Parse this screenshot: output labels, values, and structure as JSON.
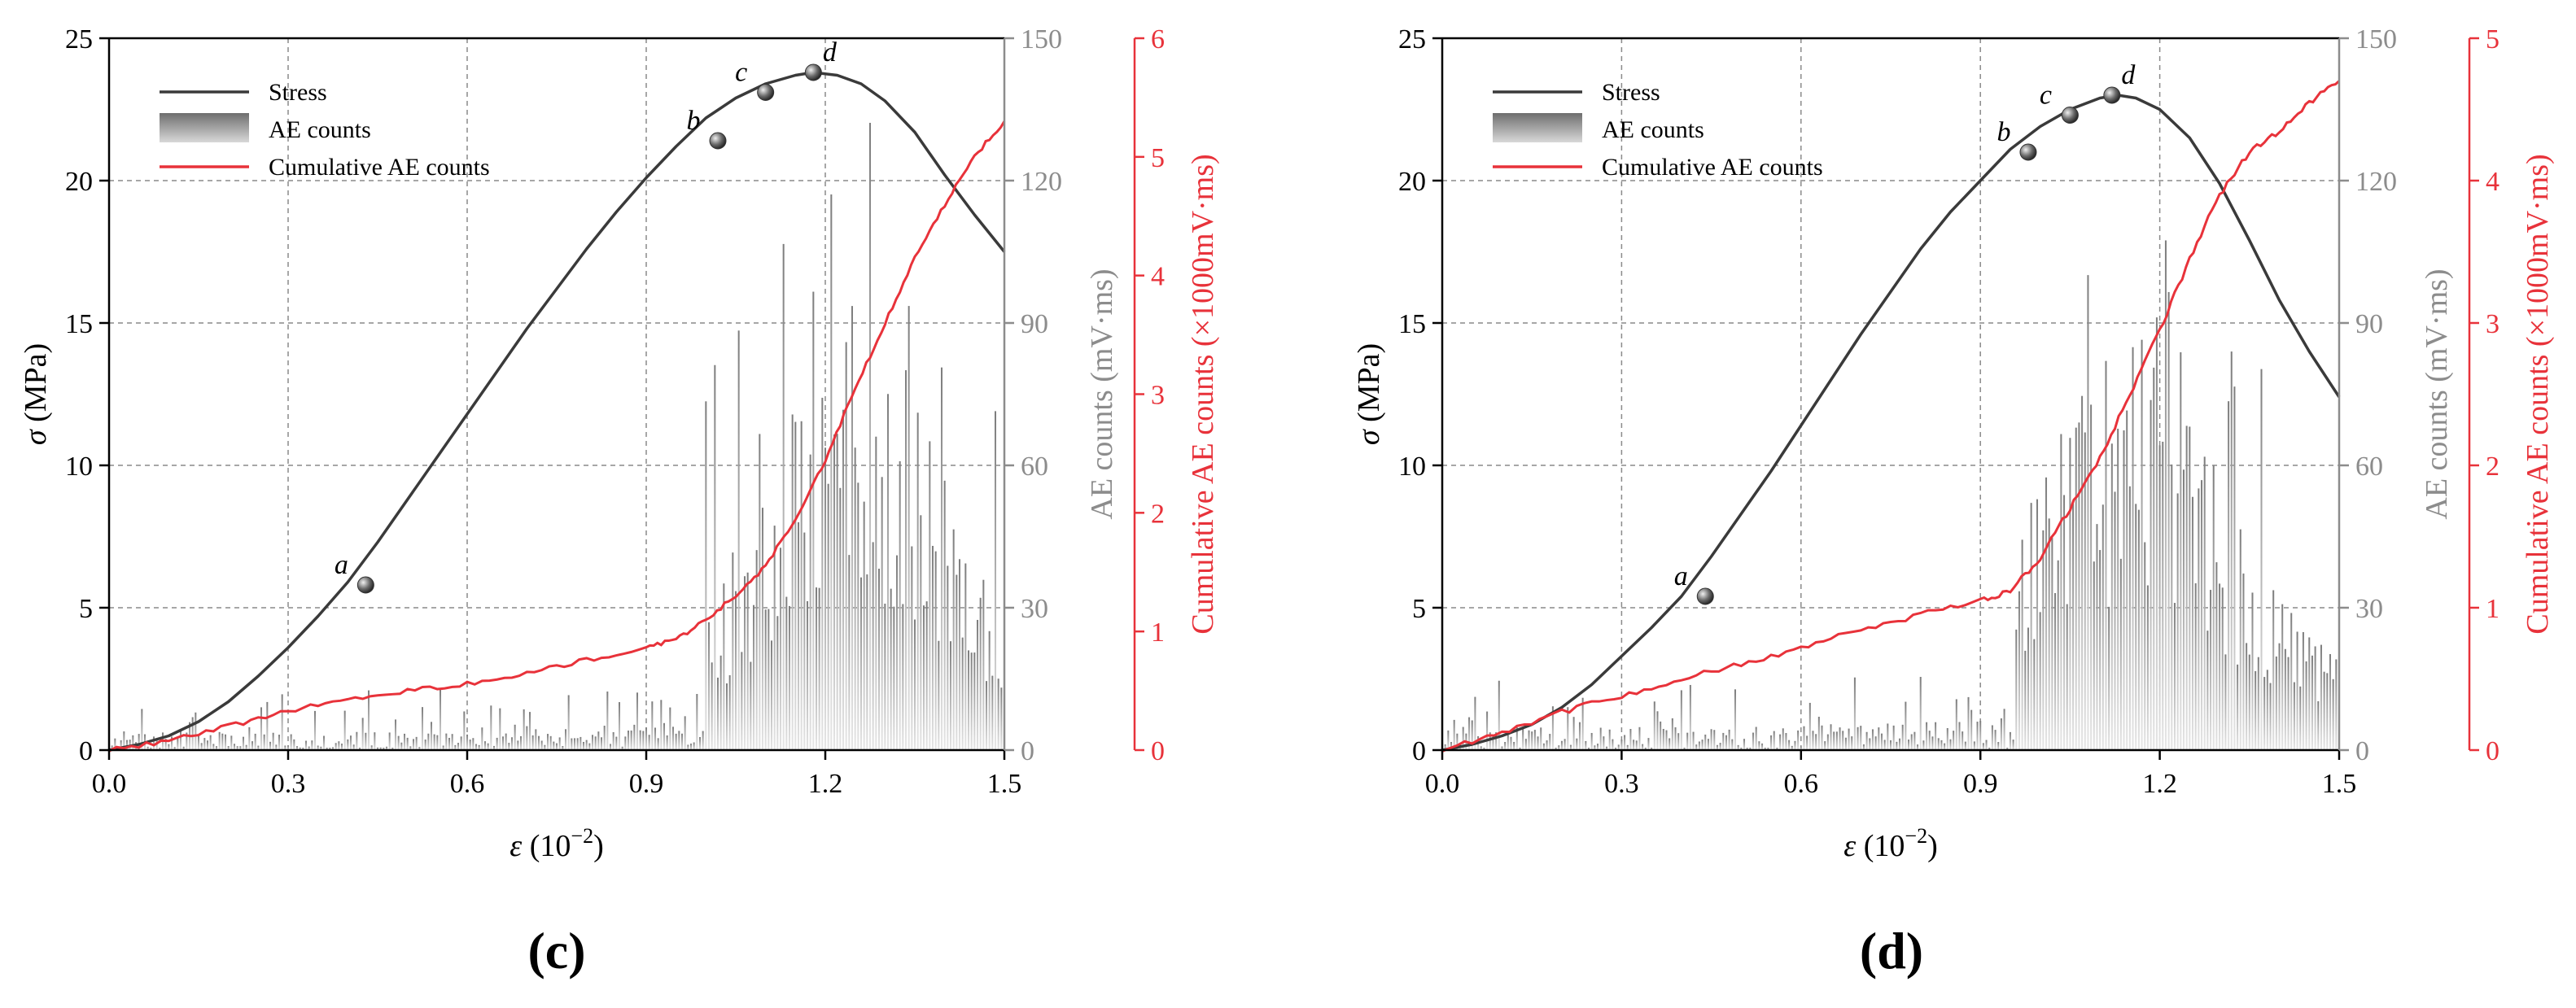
{
  "colors": {
    "stress": "#3a3a3a",
    "ae_bar": "#8c8c8c",
    "ae_bar_light": "#d0d0d0",
    "cumulative": "#e8323a",
    "grid": "#8a8a8a",
    "axis": "#000000",
    "ae_axis": "#8c8c8c",
    "cum_axis": "#e8323a"
  },
  "chart_data": [
    {
      "type": "line",
      "panel_label": "(c)",
      "xlabel_var": "ε",
      "xlabel_unit": " (10",
      "xlabel_exp": "−2",
      "xlabel_close": ")",
      "ylabel_var": "σ",
      "ylabel_unit": " (MPa)",
      "ylabel_ae": "AE counts (mV·ms)",
      "ylabel_cum": "Cumulative AE counts (×1000mV·ms)",
      "xlim": [
        0,
        1.5
      ],
      "xticks": [
        0.0,
        0.3,
        0.6,
        0.9,
        1.2,
        1.5
      ],
      "xtick_labels": [
        "0.0",
        "0.3",
        "0.6",
        "0.9",
        "1.2",
        "1.5"
      ],
      "ylim": [
        0,
        25
      ],
      "yticks": [
        0,
        5,
        10,
        15,
        20,
        25
      ],
      "ytick_labels": [
        "0",
        "5",
        "10",
        "15",
        "20",
        "25"
      ],
      "y2lim": [
        0,
        150
      ],
      "y2ticks": [
        0,
        30,
        60,
        90,
        120,
        150
      ],
      "y2tick_labels": [
        "0",
        "30",
        "60",
        "90",
        "120",
        "150"
      ],
      "y3lim": [
        0,
        6
      ],
      "y3ticks": [
        0,
        1,
        2,
        3,
        4,
        5,
        6
      ],
      "y3tick_labels": [
        "0",
        "1",
        "2",
        "3",
        "4",
        "5",
        "6"
      ],
      "legend": [
        "Stress",
        "AE counts",
        "Cumulative AE counts"
      ],
      "legend_position": "top-left",
      "stress": {
        "x": [
          0.0,
          0.05,
          0.1,
          0.15,
          0.2,
          0.25,
          0.3,
          0.35,
          0.4,
          0.45,
          0.5,
          0.55,
          0.6,
          0.65,
          0.7,
          0.75,
          0.8,
          0.85,
          0.9,
          0.95,
          1.0,
          1.05,
          1.1,
          1.15,
          1.18,
          1.22,
          1.26,
          1.3,
          1.35,
          1.4,
          1.45,
          1.5
        ],
        "y": [
          0.0,
          0.2,
          0.5,
          1.0,
          1.7,
          2.6,
          3.6,
          4.7,
          5.9,
          7.3,
          8.8,
          10.3,
          11.8,
          13.3,
          14.8,
          16.2,
          17.6,
          18.9,
          20.1,
          21.2,
          22.2,
          22.9,
          23.4,
          23.7,
          23.8,
          23.7,
          23.4,
          22.8,
          21.7,
          20.2,
          18.8,
          17.5
        ]
      },
      "cumulative": {
        "x": [
          0.0,
          0.1,
          0.2,
          0.3,
          0.4,
          0.5,
          0.6,
          0.7,
          0.8,
          0.9,
          0.95,
          1.0,
          1.05,
          1.1,
          1.15,
          1.2,
          1.25,
          1.3,
          1.35,
          1.4,
          1.45,
          1.5
        ],
        "y": [
          0.0,
          0.08,
          0.2,
          0.33,
          0.43,
          0.5,
          0.56,
          0.65,
          0.76,
          0.86,
          0.93,
          1.1,
          1.3,
          1.55,
          1.95,
          2.45,
          3.05,
          3.6,
          4.15,
          4.6,
          5.0,
          5.3
        ]
      },
      "ae_counts": {
        "spacing": 0.005,
        "base_pre": 4,
        "amp_pre": 9,
        "onset": 1.0,
        "peak_x": 1.25,
        "peak_val": 135,
        "seed": 7
      },
      "points": [
        {
          "label": "a",
          "x": 0.43,
          "y": 5.8
        },
        {
          "label": "b",
          "x": 1.02,
          "y": 21.4
        },
        {
          "label": "c",
          "x": 1.1,
          "y": 23.1
        },
        {
          "label": "d",
          "x": 1.18,
          "y": 23.8
        }
      ]
    },
    {
      "type": "line",
      "panel_label": "(d)",
      "xlabel_var": "ε",
      "xlabel_unit": " (10",
      "xlabel_exp": "−2",
      "xlabel_close": ")",
      "ylabel_var": "σ",
      "ylabel_unit": " (MPa)",
      "ylabel_ae": "AE counts (mV·ms)",
      "ylabel_cum": "Cumulative AE counts (×1000mV·ms)",
      "xlim": [
        0,
        1.5
      ],
      "xticks": [
        0.0,
        0.3,
        0.6,
        0.9,
        1.2,
        1.5
      ],
      "xtick_labels": [
        "0.0",
        "0.3",
        "0.6",
        "0.9",
        "1.2",
        "1.5"
      ],
      "ylim": [
        0,
        25
      ],
      "yticks": [
        0,
        5,
        10,
        15,
        20,
        25
      ],
      "ytick_labels": [
        "0",
        "5",
        "10",
        "15",
        "20",
        "25"
      ],
      "y2lim": [
        0,
        150
      ],
      "y2ticks": [
        0,
        30,
        60,
        90,
        120,
        150
      ],
      "y2tick_labels": [
        "0",
        "30",
        "60",
        "90",
        "120",
        "150"
      ],
      "y3lim": [
        0,
        5
      ],
      "y3ticks": [
        0,
        1,
        2,
        3,
        4,
        5
      ],
      "y3tick_labels": [
        "0",
        "1",
        "2",
        "3",
        "4",
        "5"
      ],
      "legend": [
        "Stress",
        "AE counts",
        "Cumulative AE counts"
      ],
      "legend_position": "top-left",
      "stress": {
        "x": [
          0.0,
          0.05,
          0.1,
          0.15,
          0.2,
          0.25,
          0.3,
          0.35,
          0.4,
          0.45,
          0.5,
          0.55,
          0.6,
          0.65,
          0.7,
          0.75,
          0.8,
          0.85,
          0.9,
          0.95,
          1.0,
          1.05,
          1.1,
          1.13,
          1.16,
          1.2,
          1.25,
          1.3,
          1.35,
          1.4,
          1.45,
          1.5
        ],
        "y": [
          0.0,
          0.2,
          0.5,
          0.9,
          1.5,
          2.3,
          3.3,
          4.3,
          5.4,
          6.8,
          8.3,
          9.8,
          11.4,
          13.0,
          14.6,
          16.1,
          17.6,
          18.9,
          20.0,
          21.1,
          21.9,
          22.5,
          22.9,
          23.0,
          22.9,
          22.5,
          21.5,
          19.9,
          17.9,
          15.8,
          14.0,
          12.4
        ]
      },
      "cumulative": {
        "x": [
          0.0,
          0.1,
          0.2,
          0.3,
          0.4,
          0.5,
          0.6,
          0.7,
          0.8,
          0.9,
          0.95,
          1.0,
          1.05,
          1.1,
          1.15,
          1.2,
          1.25,
          1.3,
          1.35,
          1.4,
          1.45,
          1.5
        ],
        "y": [
          0.0,
          0.13,
          0.27,
          0.38,
          0.5,
          0.6,
          0.72,
          0.84,
          0.95,
          1.05,
          1.12,
          1.35,
          1.7,
          2.05,
          2.5,
          2.95,
          3.45,
          3.9,
          4.2,
          4.35,
          4.55,
          4.7
        ]
      },
      "ae_counts": {
        "spacing": 0.005,
        "base_pre": 5,
        "amp_pre": 11,
        "onset": 0.96,
        "peak_x": 1.15,
        "peak_val": 124,
        "seed": 13
      },
      "points": [
        {
          "label": "a",
          "x": 0.44,
          "y": 5.4
        },
        {
          "label": "b",
          "x": 0.98,
          "y": 21.0
        },
        {
          "label": "c",
          "x": 1.05,
          "y": 22.3
        },
        {
          "label": "d",
          "x": 1.12,
          "y": 23.0
        }
      ]
    }
  ]
}
